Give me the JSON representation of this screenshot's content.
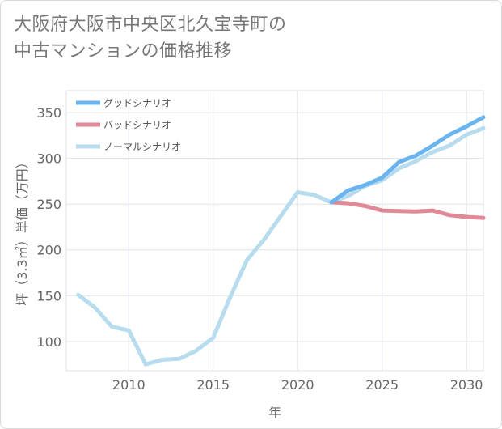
{
  "title": {
    "line1": "大阪府大阪市中央区北久宝寺町の",
    "line2": "中古マンションの価格推移"
  },
  "chart_data": {
    "type": "line",
    "title": "大阪府大阪市中央区北久宝寺町の中古マンションの価格推移",
    "xlabel": "年",
    "ylabel": "坪（3.3㎡）単価（万円）",
    "xlim": [
      2006.3,
      2031
    ],
    "ylim": [
      68,
      374
    ],
    "xticks": [
      2010,
      2015,
      2020,
      2025,
      2030
    ],
    "yticks": [
      100,
      150,
      200,
      250,
      300,
      350
    ],
    "grid": true,
    "legend_position": "top-left",
    "series": [
      {
        "name": "グッドシナリオ",
        "color": "#6ab4f0",
        "x": [
          2022,
          2023,
          2024,
          2025,
          2026,
          2027,
          2028,
          2029,
          2030,
          2031
        ],
        "values": [
          252,
          265,
          271,
          279,
          296,
          303,
          314,
          326,
          335,
          345
        ]
      },
      {
        "name": "バッドシナリオ",
        "color": "#e08a98",
        "x": [
          2022,
          2023,
          2024,
          2025,
          2026,
          2027,
          2028,
          2029,
          2030,
          2031
        ],
        "values": [
          252,
          251,
          248,
          243,
          242.5,
          242,
          243,
          238,
          236,
          235
        ]
      },
      {
        "name": "ノーマルシナリオ",
        "color": "#b7dcee",
        "x": [
          2007,
          2008,
          2009,
          2010,
          2011,
          2012,
          2013,
          2014,
          2015,
          2016,
          2017,
          2018,
          2019,
          2020,
          2021,
          2022,
          2023,
          2024,
          2025,
          2026,
          2027,
          2028,
          2029,
          2030,
          2031
        ],
        "values": [
          151,
          137,
          116,
          112,
          75,
          80,
          81,
          90,
          104,
          148,
          189,
          211,
          237,
          263,
          260,
          252,
          259,
          270,
          276,
          289,
          297,
          307,
          314,
          326,
          333
        ]
      }
    ]
  }
}
